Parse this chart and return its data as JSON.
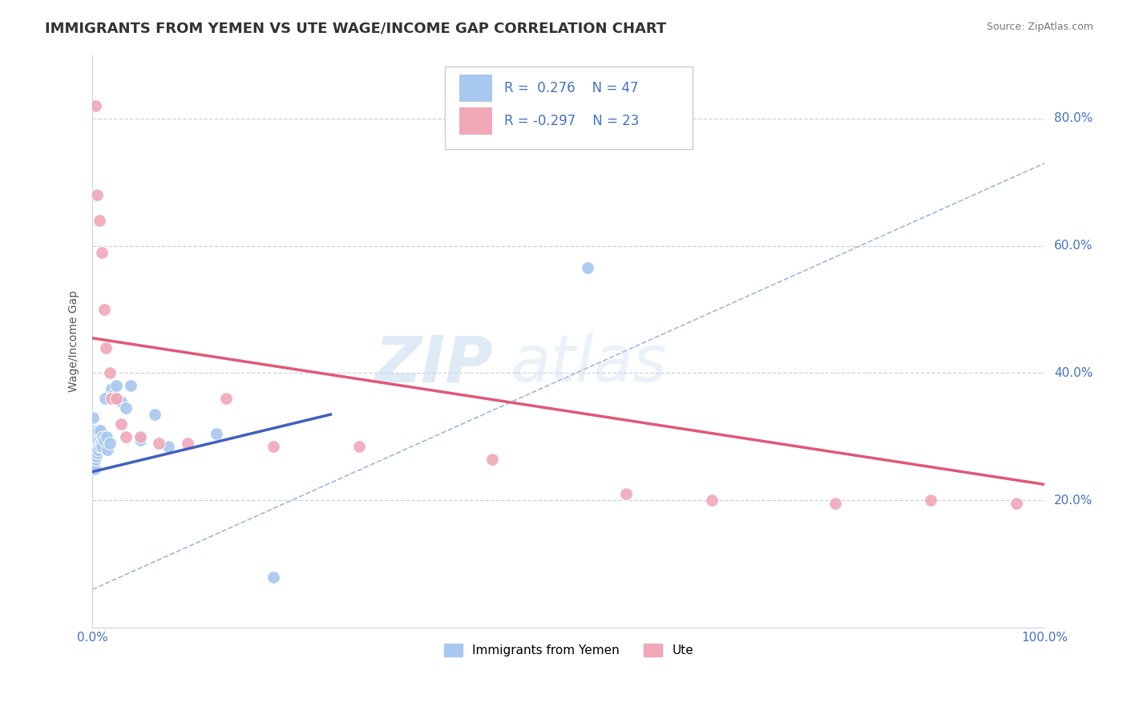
{
  "title": "IMMIGRANTS FROM YEMEN VS UTE WAGE/INCOME GAP CORRELATION CHART",
  "source": "Source: ZipAtlas.com",
  "ylabel": "Wage/Income Gap",
  "yticks": [
    0.2,
    0.4,
    0.6,
    0.8
  ],
  "ytick_labels": [
    "20.0%",
    "40.0%",
    "60.0%",
    "80.0%"
  ],
  "xtick_labels": [
    "0.0%",
    "",
    "",
    "",
    "",
    "100.0%"
  ],
  "xlim": [
    0.0,
    1.0
  ],
  "ylim": [
    0.0,
    0.9
  ],
  "legend_r1": "R =  0.276",
  "legend_n1": "N = 47",
  "legend_r2": "R = -0.297",
  "legend_n2": "N = 23",
  "color_blue": "#a8c8f0",
  "color_pink": "#f0a8b8",
  "color_blue_line": "#4060c0",
  "color_pink_line": "#e05878",
  "color_dashed": "#a0b8d8",
  "blue_dots_x": [
    0.001,
    0.001,
    0.001,
    0.001,
    0.001,
    0.001,
    0.001,
    0.002,
    0.002,
    0.002,
    0.002,
    0.002,
    0.003,
    0.003,
    0.003,
    0.003,
    0.004,
    0.004,
    0.004,
    0.005,
    0.005,
    0.006,
    0.006,
    0.006,
    0.007,
    0.008,
    0.008,
    0.009,
    0.01,
    0.011,
    0.012,
    0.013,
    0.015,
    0.016,
    0.018,
    0.02,
    0.022,
    0.025,
    0.03,
    0.035,
    0.04,
    0.05,
    0.065,
    0.08,
    0.13,
    0.19,
    0.52
  ],
  "blue_dots_y": [
    0.26,
    0.27,
    0.285,
    0.29,
    0.3,
    0.31,
    0.33,
    0.25,
    0.27,
    0.285,
    0.295,
    0.3,
    0.265,
    0.275,
    0.29,
    0.3,
    0.27,
    0.285,
    0.295,
    0.275,
    0.3,
    0.28,
    0.295,
    0.31,
    0.285,
    0.295,
    0.31,
    0.29,
    0.285,
    0.3,
    0.295,
    0.36,
    0.3,
    0.28,
    0.29,
    0.375,
    0.365,
    0.38,
    0.355,
    0.345,
    0.38,
    0.295,
    0.335,
    0.285,
    0.305,
    0.08,
    0.565
  ],
  "pink_dots_x": [
    0.003,
    0.005,
    0.007,
    0.01,
    0.012,
    0.014,
    0.018,
    0.02,
    0.025,
    0.03,
    0.035,
    0.05,
    0.07,
    0.1,
    0.14,
    0.19,
    0.28,
    0.42,
    0.56,
    0.65,
    0.78,
    0.88,
    0.97
  ],
  "pink_dots_y": [
    0.82,
    0.68,
    0.64,
    0.59,
    0.5,
    0.44,
    0.4,
    0.36,
    0.36,
    0.32,
    0.3,
    0.3,
    0.29,
    0.29,
    0.36,
    0.285,
    0.285,
    0.265,
    0.21,
    0.2,
    0.195,
    0.2,
    0.195
  ],
  "blue_line_x": [
    0.0,
    0.25
  ],
  "blue_line_y": [
    0.245,
    0.335
  ],
  "pink_line_x": [
    0.0,
    1.0
  ],
  "pink_line_y": [
    0.455,
    0.225
  ],
  "dashed_line_x": [
    0.0,
    1.0
  ],
  "dashed_line_y": [
    0.06,
    0.73
  ],
  "background_color": "#ffffff",
  "grid_color": "#c8d4e0",
  "title_fontsize": 13,
  "axis_label_fontsize": 10,
  "tick_fontsize": 11,
  "legend_fontsize": 12
}
